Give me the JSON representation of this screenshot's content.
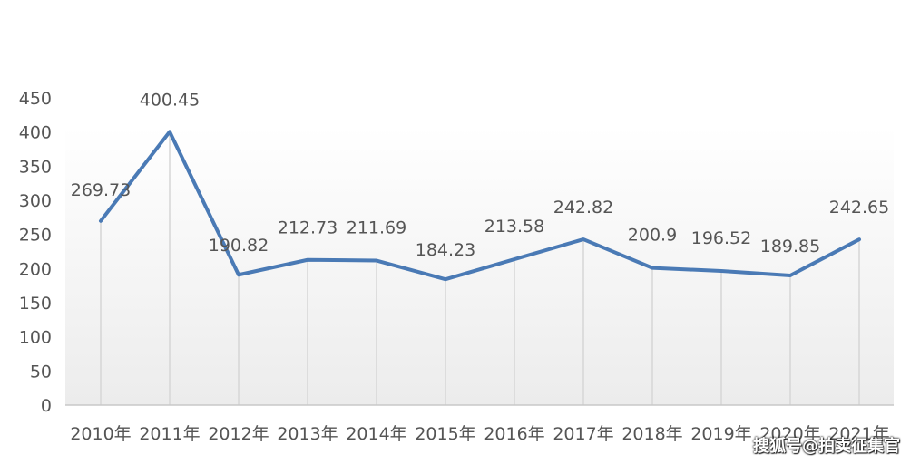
{
  "chart_data": {
    "type": "line",
    "categories": [
      "2010年",
      "2011年",
      "2012年",
      "2013年",
      "2014年",
      "2015年",
      "2016年",
      "2017年",
      "2018年",
      "2019年",
      "2020年",
      "2021年"
    ],
    "values": [
      269.73,
      400.45,
      190.82,
      212.73,
      211.69,
      184.23,
      213.58,
      242.82,
      200.9,
      196.52,
      189.85,
      242.65
    ],
    "data_labels": [
      "269.73",
      "400.45",
      "190.82",
      "212.73",
      "211.69",
      "184.23",
      "213.58",
      "242.82",
      "200.9",
      "196.52",
      "189.85",
      "242.65"
    ],
    "y_ticks": [
      "0",
      "50",
      "100",
      "150",
      "200",
      "250",
      "300",
      "350",
      "400",
      "450"
    ],
    "ylim": [
      0,
      450
    ],
    "title": "",
    "xlabel": "",
    "ylabel": "",
    "line_color": "#4a7ab5",
    "grid": false,
    "drop_lines": true,
    "legend": "none"
  },
  "watermark": "搜狐号@拍卖征集官"
}
